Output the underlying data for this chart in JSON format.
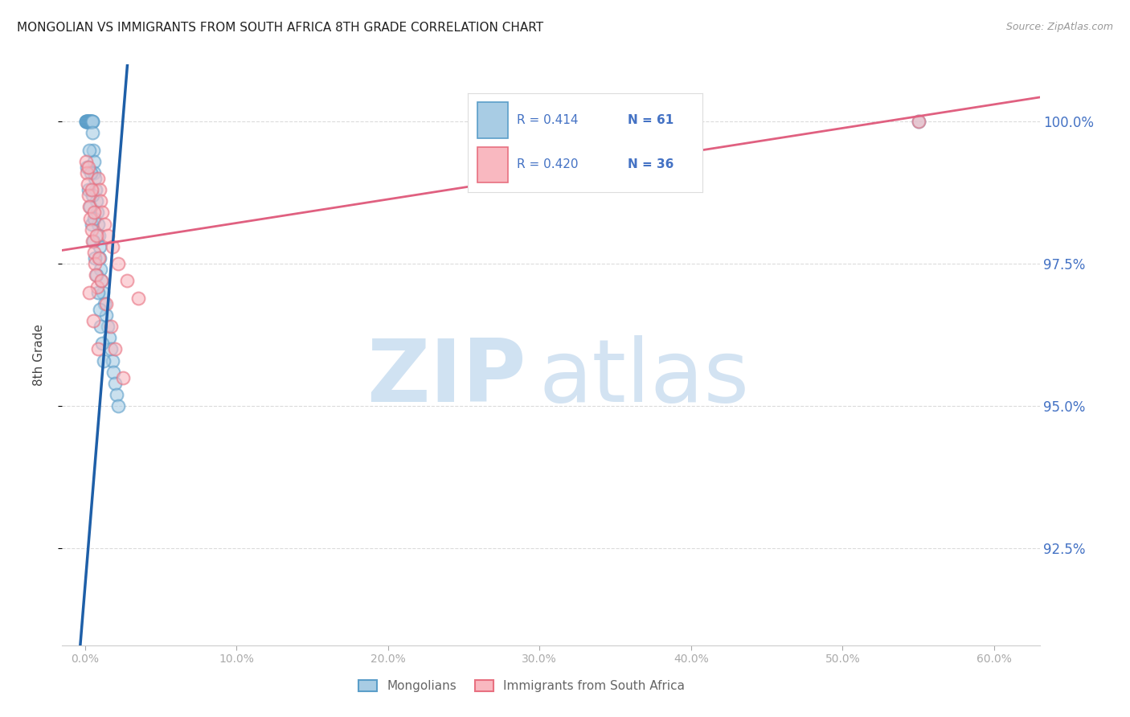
{
  "title": "MONGOLIAN VS IMMIGRANTS FROM SOUTH AFRICA 8TH GRADE CORRELATION CHART",
  "source": "Source: ZipAtlas.com",
  "ylabel": "8th Grade",
  "x_ticks_vals": [
    0,
    10,
    20,
    30,
    40,
    50,
    60
  ],
  "x_ticks_labels": [
    "0.0%",
    "10.0%",
    "20.0%",
    "30.0%",
    "40.0%",
    "50.0%",
    "60.0%"
  ],
  "y_ticks_vals": [
    92.5,
    95.0,
    97.5,
    100.0
  ],
  "y_ticks_labels": [
    "92.5%",
    "95.0%",
    "97.5%",
    "100.0%"
  ],
  "y_min": 90.8,
  "y_max": 101.0,
  "x_min": -1.5,
  "x_max": 63.0,
  "mongolian_color_face": "#a8cce4",
  "mongolian_color_edge": "#5b9ec9",
  "southafrica_color_face": "#f9b8c0",
  "southafrica_color_edge": "#e87080",
  "mongolian_line_color": "#1e5fa8",
  "southafrica_line_color": "#e06080",
  "legend_r1": "R = 0.414",
  "legend_n1": "N = 61",
  "legend_r2": "R = 0.420",
  "legend_n2": "N = 36",
  "legend_label1": "Mongolians",
  "legend_label2": "Immigrants from South Africa",
  "right_axis_color": "#4472c4",
  "title_color": "#222222",
  "source_color": "#999999",
  "grid_color": "#cccccc",
  "marker_size": 130,
  "mongolian_x": [
    0.05,
    0.08,
    0.1,
    0.12,
    0.15,
    0.18,
    0.2,
    0.22,
    0.25,
    0.28,
    0.3,
    0.32,
    0.35,
    0.38,
    0.4,
    0.42,
    0.45,
    0.48,
    0.5,
    0.52,
    0.55,
    0.58,
    0.6,
    0.65,
    0.7,
    0.75,
    0.8,
    0.85,
    0.9,
    0.95,
    1.0,
    1.05,
    1.1,
    1.2,
    1.3,
    1.4,
    1.5,
    1.6,
    1.7,
    1.8,
    1.9,
    2.0,
    2.1,
    2.2,
    0.15,
    0.25,
    0.35,
    0.45,
    0.55,
    0.65,
    0.75,
    0.85,
    0.95,
    1.05,
    1.15,
    1.25,
    0.3,
    0.4,
    0.5,
    0.6,
    55.0
  ],
  "mongolian_y": [
    100.0,
    100.0,
    100.0,
    100.0,
    100.0,
    100.0,
    100.0,
    100.0,
    100.0,
    100.0,
    100.0,
    100.0,
    100.0,
    100.0,
    100.0,
    100.0,
    100.0,
    100.0,
    100.0,
    99.8,
    99.5,
    99.3,
    99.1,
    99.0,
    98.8,
    98.6,
    98.4,
    98.2,
    98.0,
    97.8,
    97.6,
    97.4,
    97.2,
    97.0,
    96.8,
    96.6,
    96.4,
    96.2,
    96.0,
    95.8,
    95.6,
    95.4,
    95.2,
    95.0,
    99.2,
    98.8,
    98.5,
    98.2,
    97.9,
    97.6,
    97.3,
    97.0,
    96.7,
    96.4,
    96.1,
    95.8,
    99.5,
    99.1,
    98.7,
    98.3,
    100.0
  ],
  "southafrica_x": [
    0.08,
    0.12,
    0.18,
    0.22,
    0.28,
    0.35,
    0.42,
    0.5,
    0.58,
    0.65,
    0.72,
    0.8,
    0.88,
    0.95,
    1.05,
    1.15,
    1.3,
    1.5,
    1.8,
    2.2,
    2.8,
    3.5,
    0.25,
    0.45,
    0.6,
    0.75,
    0.9,
    1.1,
    1.4,
    1.7,
    2.0,
    2.5,
    0.3,
    0.55,
    0.85,
    55.0
  ],
  "southafrica_y": [
    99.3,
    99.1,
    98.9,
    98.7,
    98.5,
    98.3,
    98.1,
    97.9,
    97.7,
    97.5,
    97.3,
    97.1,
    99.0,
    98.8,
    98.6,
    98.4,
    98.2,
    98.0,
    97.8,
    97.5,
    97.2,
    96.9,
    99.2,
    98.8,
    98.4,
    98.0,
    97.6,
    97.2,
    96.8,
    96.4,
    96.0,
    95.5,
    97.0,
    96.5,
    96.0,
    100.0
  ],
  "trendline_blue_x0": 0.0,
  "trendline_blue_y0": 91.8,
  "trendline_blue_x1": 2.5,
  "trendline_blue_y1": 100.0,
  "trendline_pink_x0": 0.0,
  "trendline_pink_y0": 97.8,
  "trendline_pink_x1": 60.0,
  "trendline_pink_y1": 100.3
}
